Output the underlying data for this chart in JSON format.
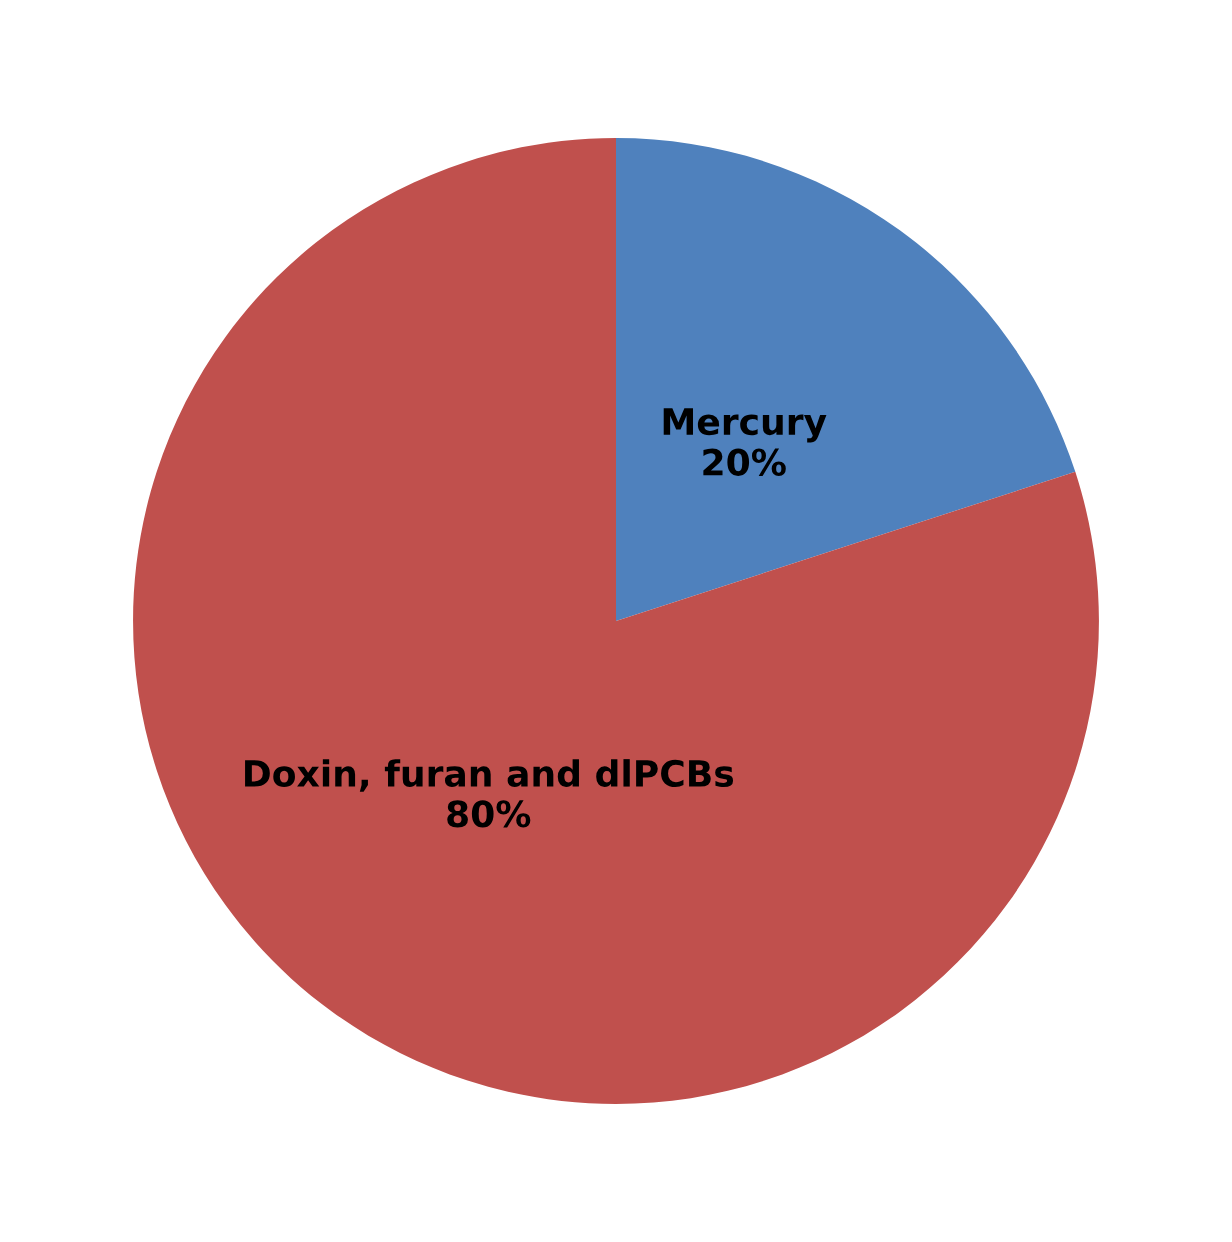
{
  "chart_data": {
    "type": "pie",
    "categories": [
      "Mercury",
      "Doxin, furan and dlPCBs"
    ],
    "values": [
      20,
      80
    ],
    "colors": [
      "#4f81bd",
      "#c0504d"
    ],
    "value_labels": [
      "20%",
      "80%"
    ],
    "legend": false
  }
}
